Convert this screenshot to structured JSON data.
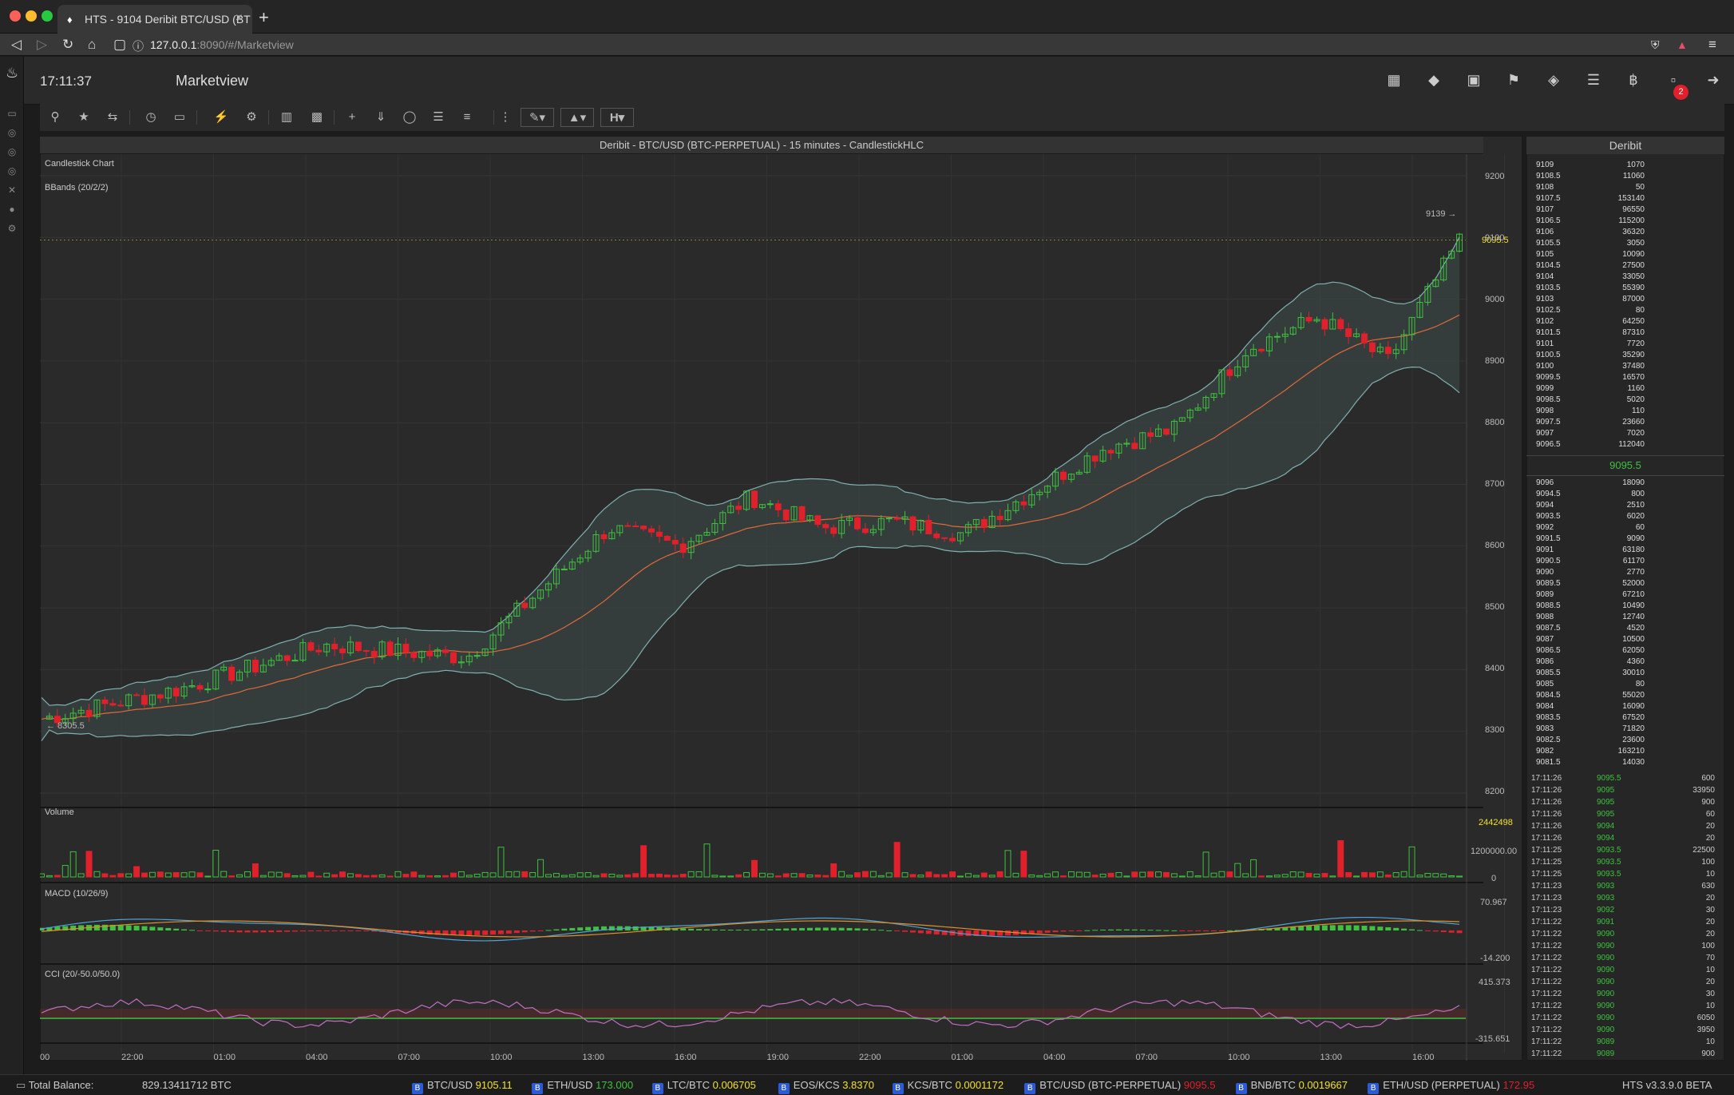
{
  "browser": {
    "tab_title": "HTS - 9104 Deribit BTC/USD (BT",
    "url_host": "127.0.0.1",
    "url_rest": ":8090/#/Marketview"
  },
  "app": {
    "clock": "17:11:37",
    "page_title": "Marketview",
    "notif_count": "2",
    "header_icons": [
      "map-icon",
      "ticket-icon",
      "fullscreen-icon",
      "bell-icon",
      "tag-icon",
      "coins-icon",
      "bitcoin-icon",
      "inbox-icon",
      "logout-icon"
    ]
  },
  "chart": {
    "title": "Deribit - BTC/USD (BTC-PERPETUAL) - 15 minutes - CandlestickHLC",
    "panel_label": "Candlestick Chart",
    "bbands_label": "BBands (20/2/2)",
    "volume_label": "Volume",
    "macd_label": "MACD (10/26/9)",
    "cci_label": "CCI (20/-50.0/50.0)",
    "last_price": "9095.5",
    "high_label": "9139",
    "low_label": "8305.5",
    "volume_last": "2442498",
    "volume_mid": "1200000.00",
    "volume_zero": "0",
    "macd_top": "70.967",
    "macd_bottom": "-14.200",
    "cci_top": "415.373",
    "cci_bottom": "-315.651",
    "price_ticks": [
      "9200",
      "9100",
      "9000",
      "8900",
      "8800",
      "8700",
      "8600",
      "8500",
      "8400",
      "8300",
      "8200"
    ],
    "time_ticks": [
      "00",
      "22:00",
      "01:00",
      "04:00",
      "07:00",
      "10:00",
      "13:00",
      "16:00",
      "19:00",
      "22:00",
      "01:00",
      "04:00",
      "07:00",
      "10:00",
      "13:00",
      "16:00"
    ]
  },
  "chart_data": {
    "type": "candlestick",
    "title": "Deribit - BTC/USD (BTC-PERPETUAL) - 15 minutes - CandlestickHLC",
    "ylim": [
      8200,
      9200
    ],
    "anchors": {
      "x_start_price": 8320,
      "points": [
        [
          0,
          8320
        ],
        [
          0.1,
          8370
        ],
        [
          0.2,
          8440
        ],
        [
          0.3,
          8420
        ],
        [
          0.4,
          8630
        ],
        [
          0.45,
          8600
        ],
        [
          0.5,
          8680
        ],
        [
          0.55,
          8630
        ],
        [
          0.6,
          8640
        ],
        [
          0.65,
          8620
        ],
        [
          0.7,
          8690
        ],
        [
          0.75,
          8760
        ],
        [
          0.8,
          8790
        ],
        [
          0.85,
          8920
        ],
        [
          0.9,
          8970
        ],
        [
          0.95,
          8900
        ],
        [
          1.0,
          9095.5
        ]
      ]
    }
  },
  "orderbook": {
    "title": "Deribit",
    "mid_price": "9095.5",
    "asks": [
      [
        "9109",
        "1070"
      ],
      [
        "9108.5",
        "11060"
      ],
      [
        "9108",
        "50"
      ],
      [
        "9107.5",
        "153140"
      ],
      [
        "9107",
        "96550"
      ],
      [
        "9106.5",
        "115200"
      ],
      [
        "9106",
        "36320"
      ],
      [
        "9105.5",
        "3050"
      ],
      [
        "9105",
        "10090"
      ],
      [
        "9104.5",
        "27500"
      ],
      [
        "9104",
        "33050"
      ],
      [
        "9103.5",
        "55390"
      ],
      [
        "9103",
        "87000"
      ],
      [
        "9102.5",
        "80"
      ],
      [
        "9102",
        "64250"
      ],
      [
        "9101.5",
        "87310"
      ],
      [
        "9101",
        "7720"
      ],
      [
        "9100.5",
        "35290"
      ],
      [
        "9100",
        "37480"
      ],
      [
        "9099.5",
        "16570"
      ],
      [
        "9099",
        "1160"
      ],
      [
        "9098.5",
        "5020"
      ],
      [
        "9098",
        "110"
      ],
      [
        "9097.5",
        "23660"
      ],
      [
        "9097",
        "7020"
      ],
      [
        "9096.5",
        "112040"
      ]
    ],
    "bids": [
      [
        "9096",
        "18090"
      ],
      [
        "9094.5",
        "800"
      ],
      [
        "9094",
        "2510"
      ],
      [
        "9093.5",
        "6020"
      ],
      [
        "9092",
        "60"
      ],
      [
        "9091.5",
        "9090"
      ],
      [
        "9091",
        "63180"
      ],
      [
        "9090.5",
        "61170"
      ],
      [
        "9090",
        "2770"
      ],
      [
        "9089.5",
        "52000"
      ],
      [
        "9089",
        "67210"
      ],
      [
        "9088.5",
        "10490"
      ],
      [
        "9088",
        "12740"
      ],
      [
        "9087.5",
        "4520"
      ],
      [
        "9087",
        "10500"
      ],
      [
        "9086.5",
        "62050"
      ],
      [
        "9086",
        "4360"
      ],
      [
        "9085.5",
        "30010"
      ],
      [
        "9085",
        "80"
      ],
      [
        "9084.5",
        "55020"
      ],
      [
        "9084",
        "16090"
      ],
      [
        "9083.5",
        "67520"
      ],
      [
        "9083",
        "71820"
      ],
      [
        "9082.5",
        "23600"
      ],
      [
        "9082",
        "163210"
      ],
      [
        "9081.5",
        "14030"
      ]
    ]
  },
  "trades": [
    [
      "17:11:26",
      "9095.5",
      "600",
      "g"
    ],
    [
      "17:11:26",
      "9095",
      "33950",
      "g"
    ],
    [
      "17:11:26",
      "9095",
      "900",
      "g"
    ],
    [
      "17:11:26",
      "9095",
      "60",
      "g"
    ],
    [
      "17:11:26",
      "9094",
      "20",
      "g"
    ],
    [
      "17:11:26",
      "9094",
      "20",
      "g"
    ],
    [
      "17:11:25",
      "9093.5",
      "22500",
      "g"
    ],
    [
      "17:11:25",
      "9093.5",
      "100",
      "g"
    ],
    [
      "17:11:25",
      "9093.5",
      "10",
      "g"
    ],
    [
      "17:11:23",
      "9093",
      "630",
      "g"
    ],
    [
      "17:11:23",
      "9093",
      "20",
      "g"
    ],
    [
      "17:11:23",
      "9092",
      "30",
      "g"
    ],
    [
      "17:11:22",
      "9091",
      "20",
      "g"
    ],
    [
      "17:11:22",
      "9090",
      "20",
      "g"
    ],
    [
      "17:11:22",
      "9090",
      "100",
      "g"
    ],
    [
      "17:11:22",
      "9090",
      "70",
      "g"
    ],
    [
      "17:11:22",
      "9090",
      "10",
      "g"
    ],
    [
      "17:11:22",
      "9090",
      "20",
      "g"
    ],
    [
      "17:11:22",
      "9090",
      "30",
      "g"
    ],
    [
      "17:11:22",
      "9090",
      "10",
      "g"
    ],
    [
      "17:11:22",
      "9090",
      "6050",
      "g"
    ],
    [
      "17:11:22",
      "9090",
      "3950",
      "g"
    ],
    [
      "17:11:22",
      "9089",
      "10",
      "g"
    ],
    [
      "17:11:22",
      "9089",
      "900",
      "g"
    ]
  ],
  "status": {
    "balance_label": "Total Balance:",
    "balance_value": "829.13411712 BTC",
    "version": "HTS v3.3.9.0 BETA",
    "tickers": [
      {
        "pair": "BTC/USD",
        "price": "9105.11",
        "cls": "ylw"
      },
      {
        "pair": "ETH/USD",
        "price": "173.000",
        "cls": "grn"
      },
      {
        "pair": "LTC/BTC",
        "price": "0.006705",
        "cls": "ylw"
      },
      {
        "pair": "EOS/KCS",
        "price": "3.8370",
        "cls": "ylw"
      },
      {
        "pair": "KCS/BTC",
        "price": "0.0001172",
        "cls": "ylw"
      },
      {
        "pair": "BTC/USD (BTC-PERPETUAL)",
        "price": "9095.5",
        "cls": "red"
      },
      {
        "pair": "BNB/BTC",
        "price": "0.0019667",
        "cls": "ylw"
      },
      {
        "pair": "ETH/USD (PERPETUAL)",
        "price": "172.95",
        "cls": "red"
      }
    ]
  }
}
